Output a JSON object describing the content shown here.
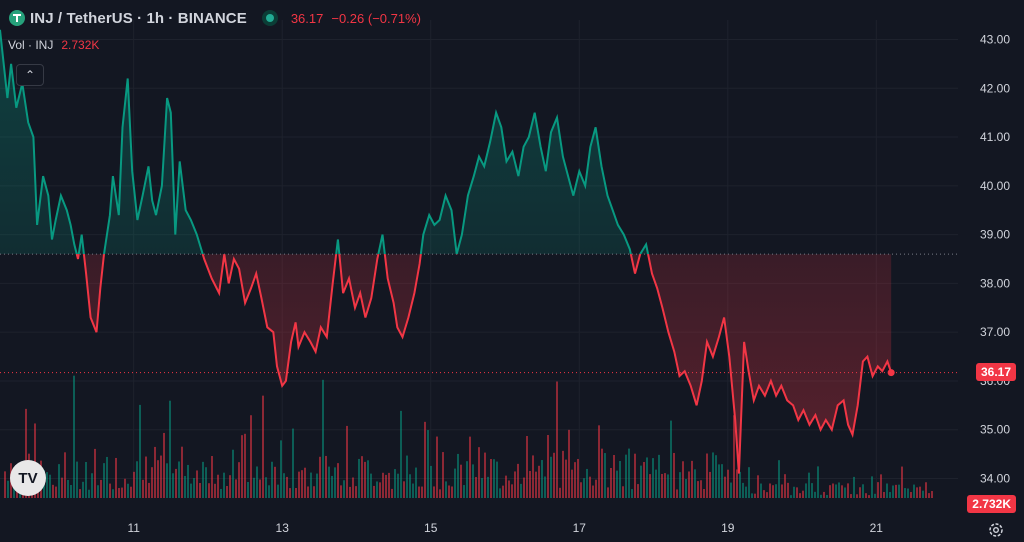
{
  "header": {
    "symbol": "INJ / TetherUS · 1h · BINANCE",
    "last": "36.17",
    "change": "−0.26 (−0.71%)"
  },
  "volume": {
    "label": "Vol · INJ",
    "value": "2.732K"
  },
  "logo_text": "TV",
  "price_tag": "36.17",
  "volume_tag": "2.732K",
  "colors": {
    "background": "#131722",
    "up": "#089981",
    "down": "#f23645",
    "grid": "#1e222d",
    "text": "#d1d4dc"
  },
  "chart_data": {
    "type": "line",
    "title": "",
    "baseline": 38.6,
    "last_price": 36.17,
    "ylim": [
      33.6,
      43.4
    ],
    "y_ticks": [
      "43.00",
      "42.00",
      "41.00",
      "40.00",
      "39.00",
      "38.00",
      "37.00",
      "36.00",
      "35.00",
      "34.00"
    ],
    "x_ticks": [
      {
        "label": "11",
        "day": 11
      },
      {
        "label": "13",
        "day": 13
      },
      {
        "label": "15",
        "day": 15
      },
      {
        "label": "17",
        "day": 17
      },
      {
        "label": "19",
        "day": 19
      },
      {
        "label": "21",
        "day": 21
      }
    ],
    "x_range": [
      9.2,
      22.1
    ],
    "series": [
      {
        "values": [
          [
            9.2,
            43.2
          ],
          [
            9.3,
            41.8
          ],
          [
            9.35,
            42.5
          ],
          [
            9.42,
            41.6
          ],
          [
            9.5,
            42.1
          ],
          [
            9.58,
            41.3
          ],
          [
            9.65,
            41.0
          ],
          [
            9.7,
            39.2
          ],
          [
            9.78,
            40.2
          ],
          [
            9.85,
            39.8
          ],
          [
            9.9,
            38.9
          ],
          [
            9.95,
            39.3
          ],
          [
            10.02,
            39.8
          ],
          [
            10.1,
            39.5
          ],
          [
            10.15,
            39.2
          ],
          [
            10.2,
            38.8
          ],
          [
            10.25,
            38.5
          ],
          [
            10.3,
            39.0
          ],
          [
            10.36,
            38.2
          ],
          [
            10.42,
            37.3
          ],
          [
            10.5,
            37.0
          ],
          [
            10.55,
            37.9
          ],
          [
            10.6,
            38.6
          ],
          [
            10.68,
            39.4
          ],
          [
            10.72,
            40.2
          ],
          [
            10.8,
            39.4
          ],
          [
            10.85,
            41.2
          ],
          [
            10.92,
            42.2
          ],
          [
            10.98,
            40.3
          ],
          [
            11.05,
            39.3
          ],
          [
            11.12,
            39.8
          ],
          [
            11.2,
            40.4
          ],
          [
            11.25,
            39.7
          ],
          [
            11.3,
            39.4
          ],
          [
            11.38,
            40.0
          ],
          [
            11.45,
            41.8
          ],
          [
            11.5,
            41.5
          ],
          [
            11.56,
            39.0
          ],
          [
            11.62,
            40.5
          ],
          [
            11.7,
            39.5
          ],
          [
            11.77,
            39.3
          ],
          [
            11.85,
            39.0
          ],
          [
            11.95,
            38.5
          ],
          [
            12.05,
            38.1
          ],
          [
            12.15,
            37.8
          ],
          [
            12.22,
            38.6
          ],
          [
            12.28,
            38.0
          ],
          [
            12.35,
            38.5
          ],
          [
            12.42,
            38.3
          ],
          [
            12.5,
            37.6
          ],
          [
            12.58,
            37.9
          ],
          [
            12.65,
            38.2
          ],
          [
            12.72,
            37.7
          ],
          [
            12.8,
            37.1
          ],
          [
            12.88,
            37.0
          ],
          [
            12.93,
            36.3
          ],
          [
            13.0,
            35.9
          ],
          [
            13.05,
            36.0
          ],
          [
            13.12,
            36.8
          ],
          [
            13.18,
            37.2
          ],
          [
            13.22,
            36.7
          ],
          [
            13.3,
            37.0
          ],
          [
            13.38,
            36.8
          ],
          [
            13.45,
            36.6
          ],
          [
            13.52,
            37.1
          ],
          [
            13.6,
            36.9
          ],
          [
            13.68,
            38.0
          ],
          [
            13.75,
            38.9
          ],
          [
            13.82,
            37.8
          ],
          [
            13.9,
            38.1
          ],
          [
            13.98,
            37.5
          ],
          [
            14.05,
            37.8
          ],
          [
            14.12,
            37.3
          ],
          [
            14.2,
            37.7
          ],
          [
            14.28,
            38.5
          ],
          [
            14.35,
            39.0
          ],
          [
            14.42,
            38.1
          ],
          [
            14.5,
            37.6
          ],
          [
            14.55,
            37.1
          ],
          [
            14.62,
            36.9
          ],
          [
            14.7,
            37.3
          ],
          [
            14.78,
            37.8
          ],
          [
            14.85,
            38.4
          ],
          [
            14.9,
            39.0
          ],
          [
            14.98,
            39.4
          ],
          [
            15.05,
            39.2
          ],
          [
            15.12,
            39.3
          ],
          [
            15.2,
            39.8
          ],
          [
            15.28,
            39.5
          ],
          [
            15.35,
            38.6
          ],
          [
            15.42,
            39.0
          ],
          [
            15.5,
            39.8
          ],
          [
            15.58,
            40.2
          ],
          [
            15.65,
            40.6
          ],
          [
            15.72,
            40.4
          ],
          [
            15.8,
            40.9
          ],
          [
            15.88,
            41.5
          ],
          [
            15.95,
            41.2
          ],
          [
            16.02,
            40.5
          ],
          [
            16.1,
            40.7
          ],
          [
            16.18,
            40.2
          ],
          [
            16.25,
            40.8
          ],
          [
            16.32,
            41.0
          ],
          [
            16.4,
            41.5
          ],
          [
            16.48,
            40.8
          ],
          [
            16.55,
            40.3
          ],
          [
            16.62,
            41.1
          ],
          [
            16.7,
            41.4
          ],
          [
            16.78,
            40.6
          ],
          [
            16.85,
            40.2
          ],
          [
            16.92,
            39.8
          ],
          [
            17.0,
            40.3
          ],
          [
            17.08,
            40.0
          ],
          [
            17.15,
            40.8
          ],
          [
            17.22,
            41.2
          ],
          [
            17.3,
            40.4
          ],
          [
            17.38,
            39.8
          ],
          [
            17.45,
            39.5
          ],
          [
            17.52,
            39.2
          ],
          [
            17.6,
            39.0
          ],
          [
            17.68,
            38.7
          ],
          [
            17.75,
            38.2
          ],
          [
            17.82,
            38.6
          ],
          [
            17.9,
            38.8
          ],
          [
            17.98,
            38.2
          ],
          [
            18.05,
            37.9
          ],
          [
            18.12,
            37.5
          ],
          [
            18.2,
            37.0
          ],
          [
            18.28,
            36.6
          ],
          [
            18.35,
            36.1
          ],
          [
            18.42,
            36.2
          ],
          [
            18.5,
            35.9
          ],
          [
            18.58,
            35.5
          ],
          [
            18.65,
            36.0
          ],
          [
            18.72,
            36.8
          ],
          [
            18.8,
            36.5
          ],
          [
            18.88,
            36.9
          ],
          [
            18.95,
            37.3
          ],
          [
            19.02,
            36.5
          ],
          [
            19.1,
            35.2
          ],
          [
            19.15,
            34.1
          ],
          [
            19.22,
            36.8
          ],
          [
            19.28,
            36.2
          ],
          [
            19.35,
            35.6
          ],
          [
            19.42,
            35.9
          ],
          [
            19.5,
            35.7
          ],
          [
            19.58,
            36.0
          ],
          [
            19.65,
            35.7
          ],
          [
            19.72,
            35.9
          ],
          [
            19.8,
            35.6
          ],
          [
            19.88,
            35.5
          ],
          [
            19.95,
            35.2
          ],
          [
            20.02,
            35.4
          ],
          [
            20.1,
            35.1
          ],
          [
            20.18,
            35.3
          ],
          [
            20.25,
            35.0
          ],
          [
            20.32,
            35.2
          ],
          [
            20.4,
            35.0
          ],
          [
            20.48,
            35.5
          ],
          [
            20.56,
            35.6
          ],
          [
            20.62,
            35.1
          ],
          [
            20.68,
            34.9
          ],
          [
            20.75,
            35.5
          ],
          [
            20.82,
            36.4
          ],
          [
            20.88,
            36.5
          ],
          [
            20.95,
            36.1
          ],
          [
            21.02,
            36.3
          ],
          [
            21.08,
            36.2
          ],
          [
            21.15,
            36.4
          ],
          [
            21.2,
            36.17
          ]
        ]
      }
    ]
  }
}
